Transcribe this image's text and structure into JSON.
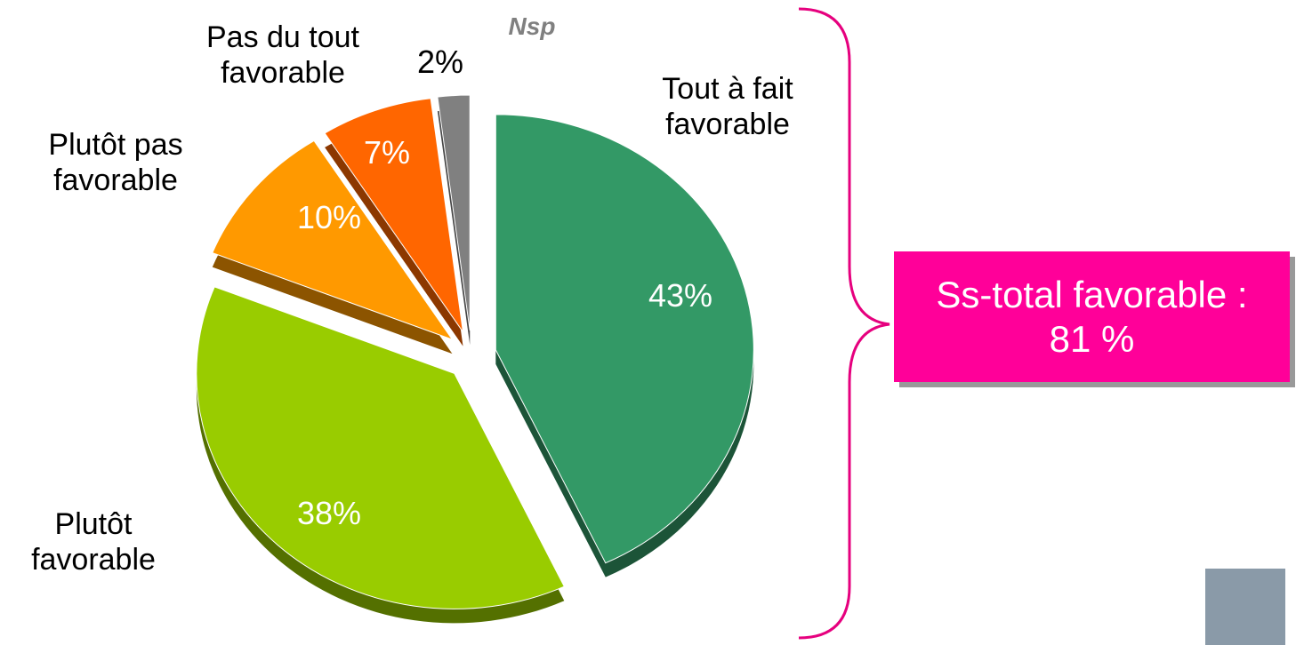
{
  "chart_data": {
    "type": "pie",
    "categories": [
      "Tout à fait favorable",
      "Plutôt favorable",
      "Plutôt pas favorable",
      "Pas du tout favorable",
      "Nsp"
    ],
    "values": [
      43,
      38,
      10,
      7,
      2
    ],
    "value_labels": [
      "43%",
      "38%",
      "10%",
      "7%",
      "2%"
    ],
    "colors": [
      "#339966",
      "#99cc00",
      "#ff9900",
      "#ff6600",
      "#808080"
    ],
    "annotation": "Ss-total favorable : 81 %"
  }
}
